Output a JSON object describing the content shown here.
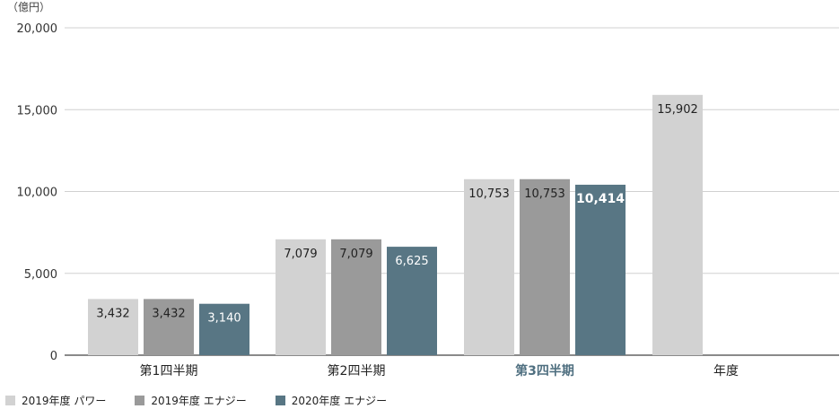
{
  "chart_data": {
    "type": "bar",
    "unit_label": "（億円）",
    "categories": [
      "第1四半期",
      "第2四半期",
      "第3四半期",
      "年度"
    ],
    "highlight_category": "第3四半期",
    "yticks": [
      "0",
      "5,000",
      "10,000",
      "15,000",
      "20,000"
    ],
    "ylim": [
      0,
      20000
    ],
    "grid": true,
    "legend_position": "bottom-left",
    "series": [
      {
        "name": "2019年度 パワー",
        "color": "#d2d2d2",
        "values": [
          3432,
          7079,
          10753,
          15902
        ],
        "labels": [
          "3,432",
          "7,079",
          "10,753",
          "15,902"
        ]
      },
      {
        "name": "2019年度 エナジー",
        "color": "#9a9a9a",
        "values": [
          3432,
          7079,
          10753,
          null
        ],
        "labels": [
          "3,432",
          "7,079",
          "10,753",
          ""
        ]
      },
      {
        "name": "2020年度 エナジー",
        "color": "#587684",
        "values": [
          3140,
          6625,
          10414,
          null
        ],
        "labels": [
          "3,140",
          "6,625",
          "10,414",
          ""
        ]
      }
    ]
  }
}
